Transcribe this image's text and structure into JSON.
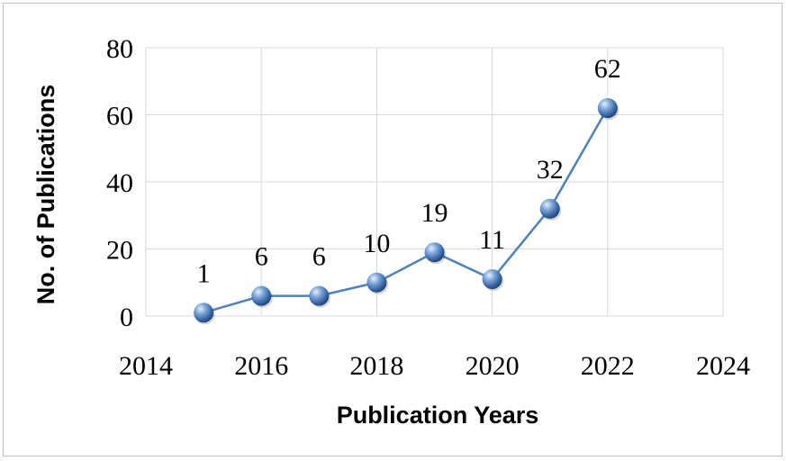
{
  "chart_data": {
    "type": "scatter",
    "title": "",
    "xlabel": "Publication Years",
    "ylabel": "No. of Publications",
    "xlim": [
      2014,
      2024
    ],
    "ylim": [
      0,
      80
    ],
    "x_ticks": [
      "2014",
      "2016",
      "2018",
      "2020",
      "2022",
      "2024"
    ],
    "y_ticks": [
      "0",
      "20",
      "40",
      "60",
      "80"
    ],
    "grid": true,
    "legend": "none",
    "marker": "sphere",
    "line_color": "#4f81bd",
    "series": [
      {
        "x": [
          2015,
          2016,
          2017,
          2018,
          2019,
          2020,
          2021,
          2022
        ],
        "values": [
          1,
          6,
          6,
          10,
          19,
          11,
          32,
          62
        ],
        "labels": [
          "1",
          "6",
          "6",
          "10",
          "19",
          "11",
          "32",
          "62"
        ]
      }
    ]
  }
}
